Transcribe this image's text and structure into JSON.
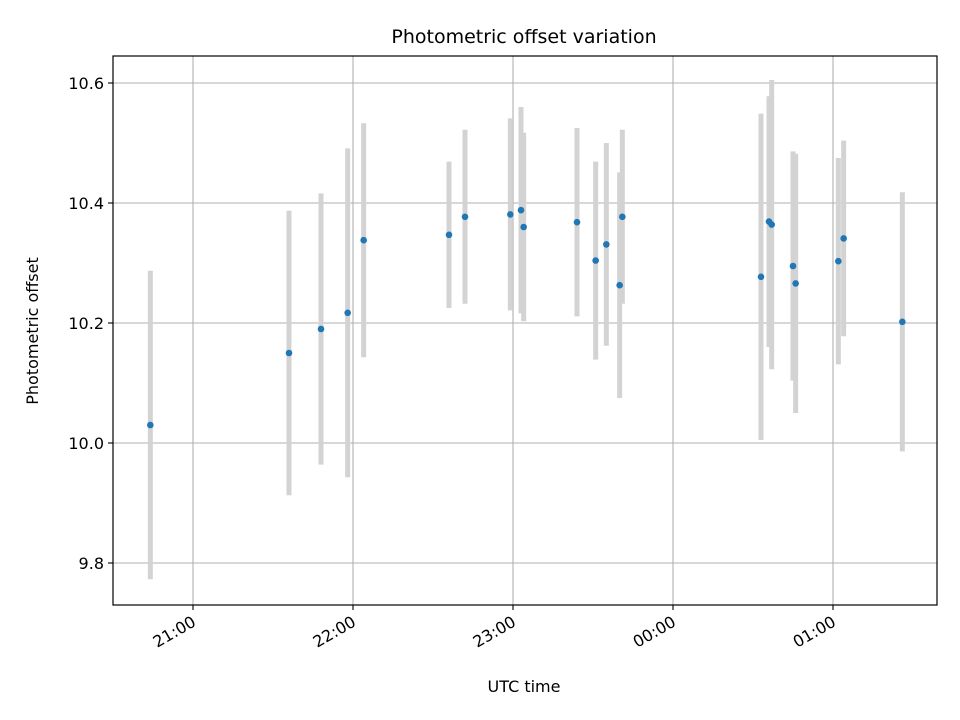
{
  "chart_data": {
    "type": "scatter",
    "title": "Photometric offset variation",
    "xlabel": "UTC time",
    "ylabel": "Photometric offset",
    "x_axis_kind": "time",
    "xlim": [
      "20:30",
      "01:39"
    ],
    "ylim": [
      9.73,
      10.645
    ],
    "x_ticks": [
      "21:00",
      "22:00",
      "23:00",
      "00:00",
      "01:00"
    ],
    "y_ticks": [
      9.8,
      10.0,
      10.2,
      10.4,
      10.6
    ],
    "y_tick_labels": [
      "9.8",
      "10.0",
      "10.2",
      "10.4",
      "10.6"
    ],
    "grid": true,
    "legend": "none",
    "colors": {
      "point": "#1f77b4",
      "error_bar": "#d3d3d3",
      "grid": "#b0b0b0"
    },
    "points": [
      {
        "time": "20:44",
        "y": 10.03,
        "err": 0.257
      },
      {
        "time": "21:36",
        "y": 10.15,
        "err": 0.237
      },
      {
        "time": "21:48",
        "y": 10.19,
        "err": 0.226
      },
      {
        "time": "21:58",
        "y": 10.217,
        "err": 0.274
      },
      {
        "time": "22:04",
        "y": 10.338,
        "err": 0.195
      },
      {
        "time": "22:36",
        "y": 10.347,
        "err": 0.122
      },
      {
        "time": "22:42",
        "y": 10.377,
        "err": 0.145
      },
      {
        "time": "22:59",
        "y": 10.381,
        "err": 0.16
      },
      {
        "time": "23:03",
        "y": 10.388,
        "err": 0.172
      },
      {
        "time": "23:04",
        "y": 10.36,
        "err": 0.157
      },
      {
        "time": "23:24",
        "y": 10.368,
        "err": 0.157
      },
      {
        "time": "23:31",
        "y": 10.304,
        "err": 0.165
      },
      {
        "time": "23:35",
        "y": 10.331,
        "err": 0.169
      },
      {
        "time": "23:40",
        "y": 10.263,
        "err": 0.188
      },
      {
        "time": "23:41",
        "y": 10.377,
        "err": 0.145
      },
      {
        "time": "00:33",
        "y": 10.277,
        "err": 0.272
      },
      {
        "time": "00:36",
        "y": 10.369,
        "err": 0.209
      },
      {
        "time": "00:37",
        "y": 10.364,
        "err": 0.241
      },
      {
        "time": "00:45",
        "y": 10.295,
        "err": 0.191
      },
      {
        "time": "00:46",
        "y": 10.266,
        "err": 0.216
      },
      {
        "time": "01:02",
        "y": 10.303,
        "err": 0.172
      },
      {
        "time": "01:04",
        "y": 10.341,
        "err": 0.163
      },
      {
        "time": "01:26",
        "y": 10.202,
        "err": 0.216
      }
    ]
  }
}
